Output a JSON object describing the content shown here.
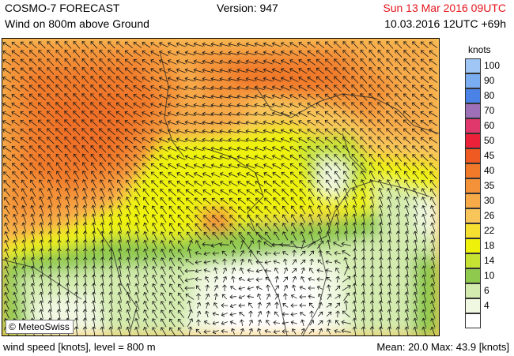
{
  "header": {
    "title_line1": "COSMO-7 FORECAST",
    "title_line2": "Wind on 800m above Ground",
    "version": "Version: 947",
    "valid_time": "Sun 13 Mar 2016 09UTC",
    "run_time": "10.03.2016 12UTC +69h",
    "valid_time_color": "#e4161b"
  },
  "map": {
    "copyright": "© MeteoSwiss",
    "arrow_icon": "wind-arrow-icon"
  },
  "legend": {
    "title": "knots",
    "levels": [
      {
        "label": "100",
        "color": "#9fc6f4"
      },
      {
        "label": "90",
        "color": "#7aaef0"
      },
      {
        "label": "80",
        "color": "#4a82e6"
      },
      {
        "label": "70",
        "color": "#9d70b8"
      },
      {
        "label": "60",
        "color": "#e0386d"
      },
      {
        "label": "50",
        "color": "#ea2138"
      },
      {
        "label": "45",
        "color": "#ef5a22"
      },
      {
        "label": "40",
        "color": "#f17a2a"
      },
      {
        "label": "35",
        "color": "#f49239"
      },
      {
        "label": "30",
        "color": "#f7aa48"
      },
      {
        "label": "26",
        "color": "#f8c55a"
      },
      {
        "label": "22",
        "color": "#f5df30"
      },
      {
        "label": "18",
        "color": "#eef20a"
      },
      {
        "label": "14",
        "color": "#c6e233"
      },
      {
        "label": "10",
        "color": "#8fc94d"
      },
      {
        "label": "6",
        "color": "#d3ebae"
      },
      {
        "label": "4",
        "color": "#f0f8e2"
      },
      {
        "label": "",
        "color": "#ffffff"
      }
    ]
  },
  "footer": {
    "left": "wind speed [knots], level = 800 m",
    "right": "Mean:  20.0 Max:  43.9 [knots]"
  }
}
